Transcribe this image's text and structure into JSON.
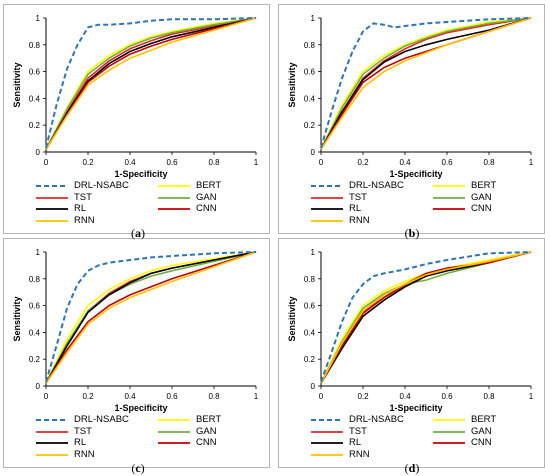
{
  "chart_data": [
    {
      "type": "line",
      "caption": "(a)",
      "xlabel": "1-Specificity",
      "ylabel": "Sensitivity",
      "xlim": [
        0,
        1
      ],
      "ylim": [
        0,
        1
      ],
      "xticks": [
        "0",
        "0.2",
        "0.4",
        "0.6",
        "0.8",
        "1"
      ],
      "yticks": [
        "0",
        "0.2",
        "0.4",
        "0.6",
        "0.8",
        "1"
      ],
      "legend_position": "bottom",
      "series": [
        {
          "name": "DRL-NSABC",
          "color": "#2e75b6",
          "dashed": true,
          "x": [
            0,
            0.05,
            0.1,
            0.15,
            0.2,
            0.25,
            0.3,
            0.4,
            0.5,
            0.6,
            0.8,
            1
          ],
          "y": [
            0.03,
            0.35,
            0.62,
            0.8,
            0.93,
            0.95,
            0.95,
            0.96,
            0.98,
            0.99,
            0.99,
            1
          ]
        },
        {
          "name": "BERT",
          "color": "#ffff00",
          "x": [
            0,
            0.1,
            0.2,
            0.3,
            0.4,
            0.5,
            0.6,
            0.8,
            1
          ],
          "y": [
            0.02,
            0.33,
            0.6,
            0.72,
            0.8,
            0.86,
            0.9,
            0.96,
            1
          ]
        },
        {
          "name": "TST",
          "color": "#e0242b",
          "x": [
            0,
            0.1,
            0.2,
            0.3,
            0.4,
            0.5,
            0.6,
            0.8,
            1
          ],
          "y": [
            0.02,
            0.3,
            0.55,
            0.68,
            0.77,
            0.83,
            0.88,
            0.94,
            1
          ]
        },
        {
          "name": "GAN",
          "color": "#70ad47",
          "x": [
            0,
            0.1,
            0.2,
            0.3,
            0.4,
            0.5,
            0.6,
            0.8,
            1
          ],
          "y": [
            0.02,
            0.32,
            0.58,
            0.7,
            0.79,
            0.85,
            0.89,
            0.95,
            1
          ]
        },
        {
          "name": "RL",
          "color": "#000000",
          "x": [
            0,
            0.1,
            0.2,
            0.3,
            0.4,
            0.5,
            0.6,
            0.8,
            1
          ],
          "y": [
            0.02,
            0.29,
            0.53,
            0.66,
            0.75,
            0.81,
            0.86,
            0.93,
            1
          ]
        },
        {
          "name": "CNN",
          "color": "#c00000",
          "x": [
            0,
            0.1,
            0.2,
            0.3,
            0.4,
            0.5,
            0.6,
            0.8,
            1
          ],
          "y": [
            0.02,
            0.28,
            0.52,
            0.64,
            0.73,
            0.79,
            0.84,
            0.92,
            1
          ]
        },
        {
          "name": "RNN",
          "color": "#ffc000",
          "x": [
            0,
            0.1,
            0.2,
            0.3,
            0.4,
            0.5,
            0.6,
            0.8,
            1
          ],
          "y": [
            0.02,
            0.27,
            0.5,
            0.61,
            0.7,
            0.76,
            0.82,
            0.91,
            1
          ]
        }
      ]
    },
    {
      "type": "line",
      "caption": "(b)",
      "xlabel": "1-Specificity",
      "ylabel": "Sensitivity",
      "xlim": [
        0,
        1
      ],
      "ylim": [
        0,
        1
      ],
      "xticks": [
        "0",
        "0.2",
        "0.4",
        "0.6",
        "0.8",
        "1"
      ],
      "yticks": [
        "0",
        "0.2",
        "0.4",
        "0.6",
        "0.8",
        "1"
      ],
      "legend_position": "bottom",
      "series": [
        {
          "name": "DRL-NSABC",
          "color": "#2e75b6",
          "dashed": true,
          "x": [
            0,
            0.05,
            0.1,
            0.15,
            0.2,
            0.25,
            0.3,
            0.35,
            0.4,
            0.5,
            0.6,
            0.8,
            1
          ],
          "y": [
            0.03,
            0.3,
            0.55,
            0.75,
            0.9,
            0.96,
            0.95,
            0.93,
            0.94,
            0.96,
            0.97,
            0.99,
            1
          ]
        },
        {
          "name": "BERT",
          "color": "#ffff00",
          "x": [
            0,
            0.1,
            0.2,
            0.3,
            0.4,
            0.5,
            0.6,
            0.8,
            1
          ],
          "y": [
            0.02,
            0.35,
            0.6,
            0.72,
            0.8,
            0.86,
            0.91,
            0.97,
            1
          ]
        },
        {
          "name": "TST",
          "color": "#e0242b",
          "x": [
            0,
            0.1,
            0.2,
            0.3,
            0.4,
            0.5,
            0.6,
            0.8,
            1
          ],
          "y": [
            0.02,
            0.3,
            0.55,
            0.68,
            0.77,
            0.84,
            0.89,
            0.95,
            1
          ]
        },
        {
          "name": "GAN",
          "color": "#70ad47",
          "x": [
            0,
            0.1,
            0.2,
            0.3,
            0.4,
            0.5,
            0.6,
            0.8,
            1
          ],
          "y": [
            0.02,
            0.33,
            0.58,
            0.7,
            0.79,
            0.85,
            0.9,
            0.96,
            1
          ]
        },
        {
          "name": "RL",
          "color": "#000000",
          "x": [
            0,
            0.1,
            0.2,
            0.3,
            0.4,
            0.5,
            0.6,
            0.8,
            1
          ],
          "y": [
            0.02,
            0.3,
            0.54,
            0.67,
            0.75,
            0.8,
            0.84,
            0.91,
            1
          ]
        },
        {
          "name": "CNN",
          "color": "#c00000",
          "x": [
            0,
            0.1,
            0.2,
            0.3,
            0.4,
            0.5,
            0.6,
            0.8,
            1
          ],
          "y": [
            0.02,
            0.28,
            0.52,
            0.63,
            0.7,
            0.75,
            0.8,
            0.9,
            1
          ]
        },
        {
          "name": "RNN",
          "color": "#ffc000",
          "x": [
            0,
            0.1,
            0.2,
            0.3,
            0.4,
            0.5,
            0.6,
            0.8,
            1
          ],
          "y": [
            0.02,
            0.26,
            0.48,
            0.6,
            0.68,
            0.74,
            0.8,
            0.9,
            1
          ]
        }
      ]
    },
    {
      "type": "line",
      "caption": "(c)",
      "xlabel": "1-Specificity",
      "ylabel": "Sensitivity",
      "xlim": [
        0,
        1
      ],
      "ylim": [
        0,
        1
      ],
      "xticks": [
        "0",
        "0.2",
        "0.4",
        "0.6",
        "0.8",
        "1"
      ],
      "yticks": [
        "0",
        "0.2",
        "0.4",
        "0.6",
        "0.8",
        "1"
      ],
      "legend_position": "bottom",
      "series": [
        {
          "name": "DRL-NSABC",
          "color": "#2e75b6",
          "dashed": true,
          "x": [
            0,
            0.05,
            0.1,
            0.15,
            0.2,
            0.25,
            0.3,
            0.4,
            0.5,
            0.6,
            0.8,
            1
          ],
          "y": [
            0.03,
            0.3,
            0.58,
            0.76,
            0.86,
            0.9,
            0.92,
            0.94,
            0.96,
            0.97,
            0.99,
            1
          ]
        },
        {
          "name": "BERT",
          "color": "#ffff00",
          "x": [
            0,
            0.1,
            0.2,
            0.3,
            0.4,
            0.5,
            0.6,
            0.8,
            1
          ],
          "y": [
            0.02,
            0.35,
            0.6,
            0.72,
            0.8,
            0.86,
            0.9,
            0.95,
            1
          ]
        },
        {
          "name": "TST",
          "color": "#e0242b",
          "x": [
            0,
            0.1,
            0.2,
            0.3,
            0.4,
            0.5,
            0.6,
            0.8,
            1
          ],
          "y": [
            0.02,
            0.31,
            0.56,
            0.69,
            0.78,
            0.84,
            0.88,
            0.94,
            1
          ]
        },
        {
          "name": "GAN",
          "color": "#70ad47",
          "x": [
            0,
            0.1,
            0.2,
            0.3,
            0.4,
            0.5,
            0.6,
            0.8,
            1
          ],
          "y": [
            0.02,
            0.32,
            0.56,
            0.68,
            0.76,
            0.82,
            0.86,
            0.93,
            1
          ]
        },
        {
          "name": "RL",
          "color": "#000000",
          "x": [
            0,
            0.1,
            0.2,
            0.3,
            0.4,
            0.5,
            0.6,
            0.8,
            1
          ],
          "y": [
            0.02,
            0.3,
            0.55,
            0.68,
            0.77,
            0.84,
            0.88,
            0.94,
            1
          ]
        },
        {
          "name": "CNN",
          "color": "#c00000",
          "x": [
            0,
            0.1,
            0.2,
            0.3,
            0.4,
            0.5,
            0.6,
            0.8,
            1
          ],
          "y": [
            0.02,
            0.27,
            0.48,
            0.6,
            0.68,
            0.74,
            0.8,
            0.9,
            1
          ]
        },
        {
          "name": "RNN",
          "color": "#ffc000",
          "x": [
            0,
            0.1,
            0.2,
            0.3,
            0.4,
            0.5,
            0.6,
            0.8,
            1
          ],
          "y": [
            0.02,
            0.25,
            0.46,
            0.58,
            0.66,
            0.72,
            0.78,
            0.89,
            1
          ]
        }
      ]
    },
    {
      "type": "line",
      "caption": "(d)",
      "xlabel": "1-Specificity",
      "ylabel": "Sensitivity",
      "xlim": [
        0,
        1
      ],
      "ylim": [
        0,
        1
      ],
      "xticks": [
        "0",
        "0.2",
        "0.4",
        "0.6",
        "0.8",
        "1"
      ],
      "yticks": [
        "0",
        "0.2",
        "0.4",
        "0.6",
        "0.8",
        "1"
      ],
      "legend_position": "bottom",
      "series": [
        {
          "name": "DRL-NSABC",
          "color": "#2e75b6",
          "dashed": true,
          "x": [
            0,
            0.05,
            0.1,
            0.15,
            0.2,
            0.25,
            0.3,
            0.4,
            0.5,
            0.6,
            0.8,
            1
          ],
          "y": [
            0.03,
            0.25,
            0.48,
            0.66,
            0.76,
            0.82,
            0.84,
            0.87,
            0.91,
            0.94,
            0.99,
            1
          ]
        },
        {
          "name": "BERT",
          "color": "#ffff00",
          "x": [
            0,
            0.1,
            0.2,
            0.3,
            0.4,
            0.5,
            0.6,
            0.8,
            1
          ],
          "y": [
            0.02,
            0.35,
            0.6,
            0.71,
            0.78,
            0.84,
            0.88,
            0.94,
            1
          ]
        },
        {
          "name": "TST",
          "color": "#e0242b",
          "x": [
            0,
            0.1,
            0.2,
            0.3,
            0.4,
            0.5,
            0.6,
            0.8,
            1
          ],
          "y": [
            0.02,
            0.3,
            0.54,
            0.66,
            0.75,
            0.82,
            0.87,
            0.93,
            1
          ]
        },
        {
          "name": "GAN",
          "color": "#70ad47",
          "x": [
            0,
            0.1,
            0.2,
            0.3,
            0.4,
            0.5,
            0.6,
            0.8,
            1
          ],
          "y": [
            0.02,
            0.33,
            0.58,
            0.69,
            0.76,
            0.79,
            0.84,
            0.92,
            1
          ]
        },
        {
          "name": "RL",
          "color": "#000000",
          "x": [
            0,
            0.1,
            0.2,
            0.3,
            0.4,
            0.5,
            0.6,
            0.8,
            1
          ],
          "y": [
            0.02,
            0.28,
            0.52,
            0.64,
            0.74,
            0.82,
            0.86,
            0.92,
            1
          ]
        },
        {
          "name": "CNN",
          "color": "#c00000",
          "x": [
            0,
            0.1,
            0.2,
            0.3,
            0.4,
            0.5,
            0.6,
            0.8,
            1
          ],
          "y": [
            0.02,
            0.3,
            0.55,
            0.66,
            0.76,
            0.84,
            0.88,
            0.92,
            1
          ]
        },
        {
          "name": "RNN",
          "color": "#ffc000",
          "x": [
            0,
            0.1,
            0.2,
            0.3,
            0.4,
            0.5,
            0.6,
            0.8,
            1
          ],
          "y": [
            0.02,
            0.32,
            0.56,
            0.68,
            0.76,
            0.83,
            0.87,
            0.93,
            1
          ]
        }
      ]
    }
  ]
}
